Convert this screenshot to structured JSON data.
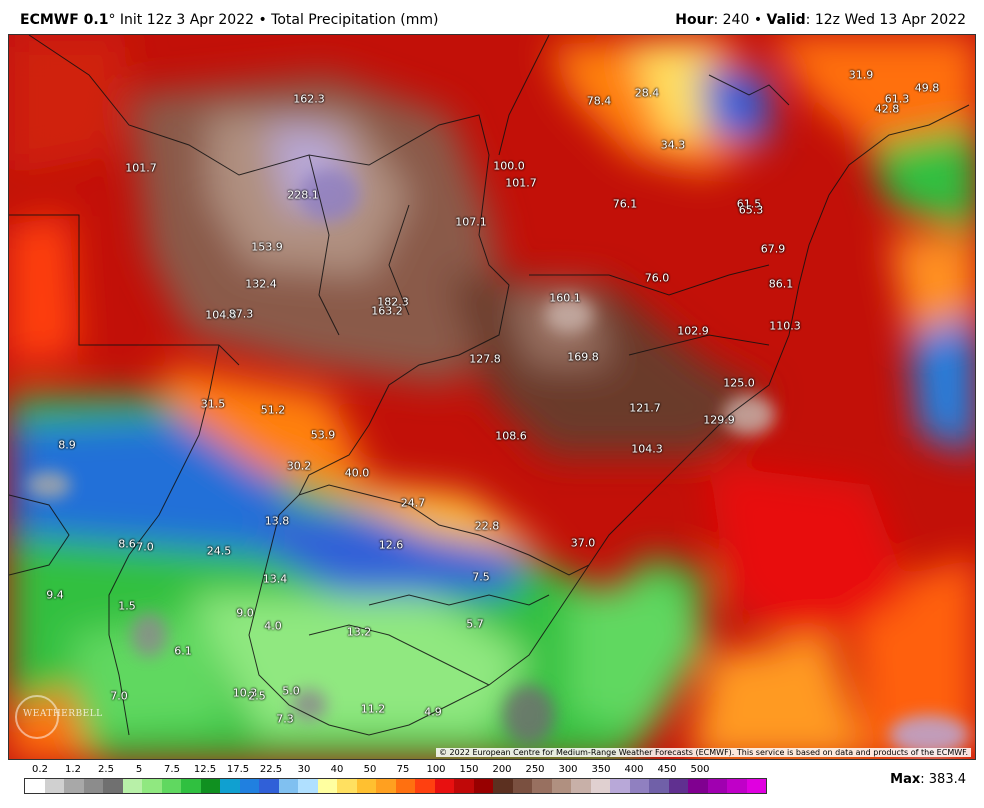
{
  "header": {
    "model": "ECMWF 0.1",
    "init": "° Init 12z 3 Apr 2022 • Total Precipitation (mm)",
    "hour_label": "Hour",
    "hour_value": ": 240 • ",
    "valid_label": "Valid",
    "valid_value": ": 12z Wed 13 Apr 2022"
  },
  "copyright": "© 2022 European Centre for Medium-Range Weather Forecasts (ECMWF). This service is based on data and products of the ECMWF.",
  "logo_text": "WEATHERBELL",
  "max_label": "Max",
  "max_value": ": 383.4",
  "legend": {
    "ticks": [
      "0.2",
      "1.2",
      "2.5",
      "5",
      "7.5",
      "12.5",
      "17.5",
      "22.5",
      "30",
      "40",
      "50",
      "75",
      "100",
      "150",
      "200",
      "250",
      "300",
      "350",
      "400",
      "450",
      "500"
    ],
    "colors": [
      "#ffffff",
      "#d0d0d0",
      "#a8a8a8",
      "#8c8c8c",
      "#707070",
      "#b8f0a8",
      "#90e880",
      "#60d860",
      "#30c040",
      "#109020",
      "#10a0d0",
      "#2080e0",
      "#3060d8",
      "#80c0f0",
      "#b0e0ff",
      "#ffffa0",
      "#ffe060",
      "#ffc030",
      "#ffa020",
      "#ff7010",
      "#ff4010",
      "#e81010",
      "#c00808",
      "#980000",
      "#5c3020",
      "#7a5040",
      "#987060",
      "#b09080",
      "#c8b0a8",
      "#e0d0d0",
      "#b8a8d8",
      "#9080c0",
      "#7060a8",
      "#603090",
      "#800090",
      "#a000b0",
      "#c000c8",
      "#e000e0"
    ]
  },
  "map_values": [
    {
      "t": "162.3"
    },
    {
      "t": "101.7"
    },
    {
      "t": "228.1"
    },
    {
      "t": "153.9"
    },
    {
      "t": "132.4"
    },
    {
      "t": "104.8"
    },
    {
      "t": "87.3"
    },
    {
      "t": "182.3"
    },
    {
      "t": "163.2"
    },
    {
      "t": "107.1"
    },
    {
      "t": "100.0"
    },
    {
      "t": "101.7"
    },
    {
      "t": "78.4"
    },
    {
      "t": "28.4"
    },
    {
      "t": "34.3"
    },
    {
      "t": "31.9"
    },
    {
      "t": "61.3"
    },
    {
      "t": "49.8"
    },
    {
      "t": "42.8"
    },
    {
      "t": "76.1"
    },
    {
      "t": "61.5"
    },
    {
      "t": "65.3"
    },
    {
      "t": "67.9"
    },
    {
      "t": "76.0"
    },
    {
      "t": "86.1"
    },
    {
      "t": "160.1"
    },
    {
      "t": "102.9"
    },
    {
      "t": "110.3"
    },
    {
      "t": "127.8"
    },
    {
      "t": "169.8"
    },
    {
      "t": "125.0"
    },
    {
      "t": "121.7"
    },
    {
      "t": "129.9"
    },
    {
      "t": "31.5"
    },
    {
      "t": "51.2"
    },
    {
      "t": "53.9"
    },
    {
      "t": "108.6"
    },
    {
      "t": "104.3"
    },
    {
      "t": "8.9"
    },
    {
      "t": "30.2"
    },
    {
      "t": "40.0"
    },
    {
      "t": "24.7"
    },
    {
      "t": "22.8"
    },
    {
      "t": "13.8"
    },
    {
      "t": "12.6"
    },
    {
      "t": "37.0"
    },
    {
      "t": "8.6"
    },
    {
      "t": "7.0"
    },
    {
      "t": "24.5"
    },
    {
      "t": "13.4"
    },
    {
      "t": "7.5"
    },
    {
      "t": "9.4"
    },
    {
      "t": "1.5"
    },
    {
      "t": "9.0"
    },
    {
      "t": "4.0"
    },
    {
      "t": "13.2"
    },
    {
      "t": "5.7"
    },
    {
      "t": "6.1"
    },
    {
      "t": "7.0"
    },
    {
      "t": "10.3"
    },
    {
      "t": "2.5"
    },
    {
      "t": "5.0"
    },
    {
      "t": "7.3"
    },
    {
      "t": "11.2"
    },
    {
      "t": "4.9"
    }
  ]
}
